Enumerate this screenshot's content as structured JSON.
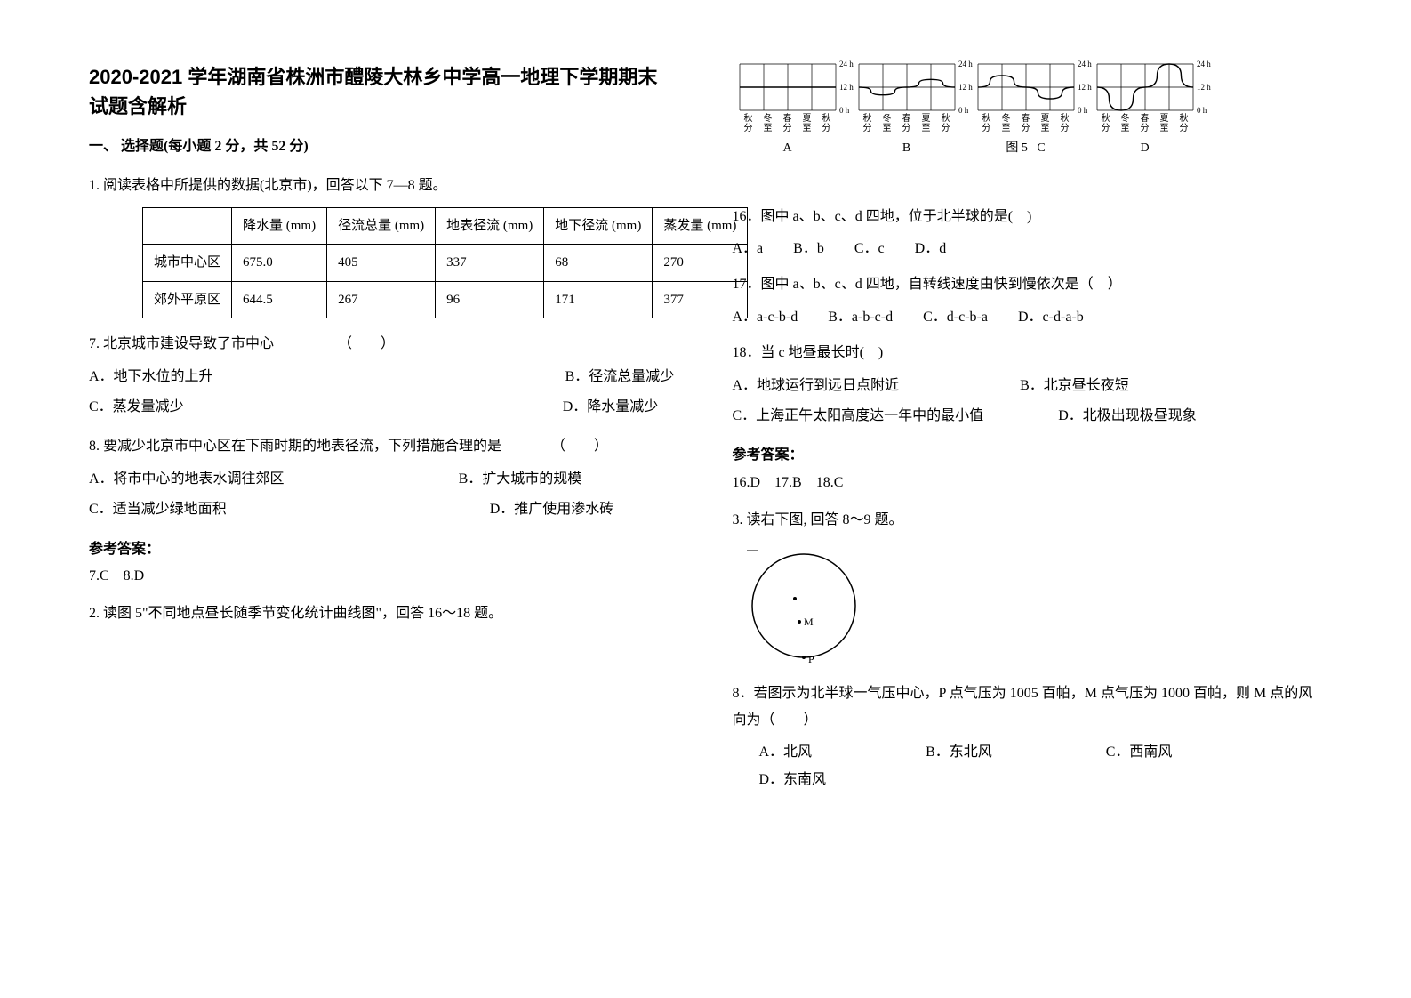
{
  "title": "2020-2021 学年湖南省株洲市醴陵大林乡中学高一地理下学期期末试题含解析",
  "section1": "一、 选择题(每小题 2 分，共 52 分)",
  "q1_intro": "1. 阅读表格中所提供的数据(北京市)，回答以下 7—8 题。",
  "table": {
    "columns": [
      "",
      "降水量 (mm)",
      "径流总量 (mm)",
      "地表径流 (mm)",
      "地下径流 (mm)",
      "蒸发量 (mm)"
    ],
    "rows": [
      [
        "城市中心区",
        "675.0",
        "405",
        "337",
        "68",
        "270"
      ],
      [
        "郊外平原区",
        "644.5",
        "267",
        "96",
        "171",
        "377"
      ]
    ]
  },
  "q7": "7. 北京城市建设导致了市中心　　　　　（　　）",
  "q7opts": {
    "a": "A．地下水位的上升",
    "b": "B．径流总量减少",
    "c": "C．蒸发量减少",
    "d": "D．降水量减少"
  },
  "q8": "8. 要减少北京市中心区在下雨时期的地表径流，下列措施合理的是　　　　（　　）",
  "q8opts": {
    "a": "A．将市中心的地表水调往郊区",
    "b": "B．扩大城市的规模",
    "c": "C．适当减少绿地面积",
    "d": "D．推广使用渗水砖"
  },
  "ans_label": "参考答案：",
  "ans_7_8": "7.C　8.D",
  "q2_intro": "2. 读图 5\"不同地点昼长随季节变化统计曲线图\"，回答 16～18 题。",
  "charts": {
    "type": "line",
    "background_color": "#ffffff",
    "grid_color": "#000000",
    "line_color": "#000000",
    "line_width": 1.4,
    "ylim": [
      0,
      24
    ],
    "ytick_labels": [
      "0 h",
      "12 h",
      "24 h"
    ],
    "x_categories": [
      "秋分",
      "冬至",
      "春分",
      "夏至",
      "秋分"
    ],
    "x_categories_2line": [
      [
        "秋",
        "分"
      ],
      [
        "冬",
        "至"
      ],
      [
        "春",
        "分"
      ],
      [
        "夏",
        "至"
      ],
      [
        "秋",
        "分"
      ]
    ],
    "panels": [
      {
        "label": "A",
        "values": [
          12,
          12,
          12,
          12,
          12
        ]
      },
      {
        "label": "B",
        "values": [
          12,
          8,
          12,
          16,
          12
        ]
      },
      {
        "label": "C",
        "values": [
          12,
          18,
          12,
          6,
          12
        ]
      },
      {
        "label": "D",
        "values": [
          12,
          0,
          12,
          24,
          12
        ]
      }
    ],
    "figure_label": "图 5"
  },
  "q16": "16．图中 a、b、c、d 四地，位于北半球的是(　)",
  "q16opts": {
    "a": "A．a",
    "b": "B．b",
    "c": "C．c",
    "d": "D．d"
  },
  "q17": "17．图中 a、b、c、d 四地，自转线速度由快到慢依次是（　）",
  "q17opts": {
    "a": "A．a-c-b-d",
    "b": "B．a-b-c-d",
    "c": "C．d-c-b-a",
    "d": "D．c-d-a-b"
  },
  "q18": "18．当 c 地昼最长时(　)",
  "q18opts": {
    "a": "A．地球运行到远日点附近",
    "b": "B．北京昼长夜短",
    "c": "C．上海正午太阳高度达一年中的最小值",
    "d": "D．北极出现极昼现象"
  },
  "ans_16_18": "16.D　17.B　18.C",
  "q3_intro": "3. 读右下图, 回答 8～9 题。",
  "circle": {
    "type": "diagram",
    "stroke": "#000000",
    "stroke_width": 1.5,
    "radius": 58,
    "labels": {
      "m": "M",
      "p": "P",
      "center_dot": true
    }
  },
  "q8b": "8．若图示为北半球一气压中心，P 点气压为 1005 百帕，M 点气压为 1000 百帕，则 M 点的风向为（　　）",
  "q8b_opts": {
    "a": "A．北风",
    "b": "B．东北风",
    "c": "C．西南风",
    "d": "D．东南风"
  }
}
